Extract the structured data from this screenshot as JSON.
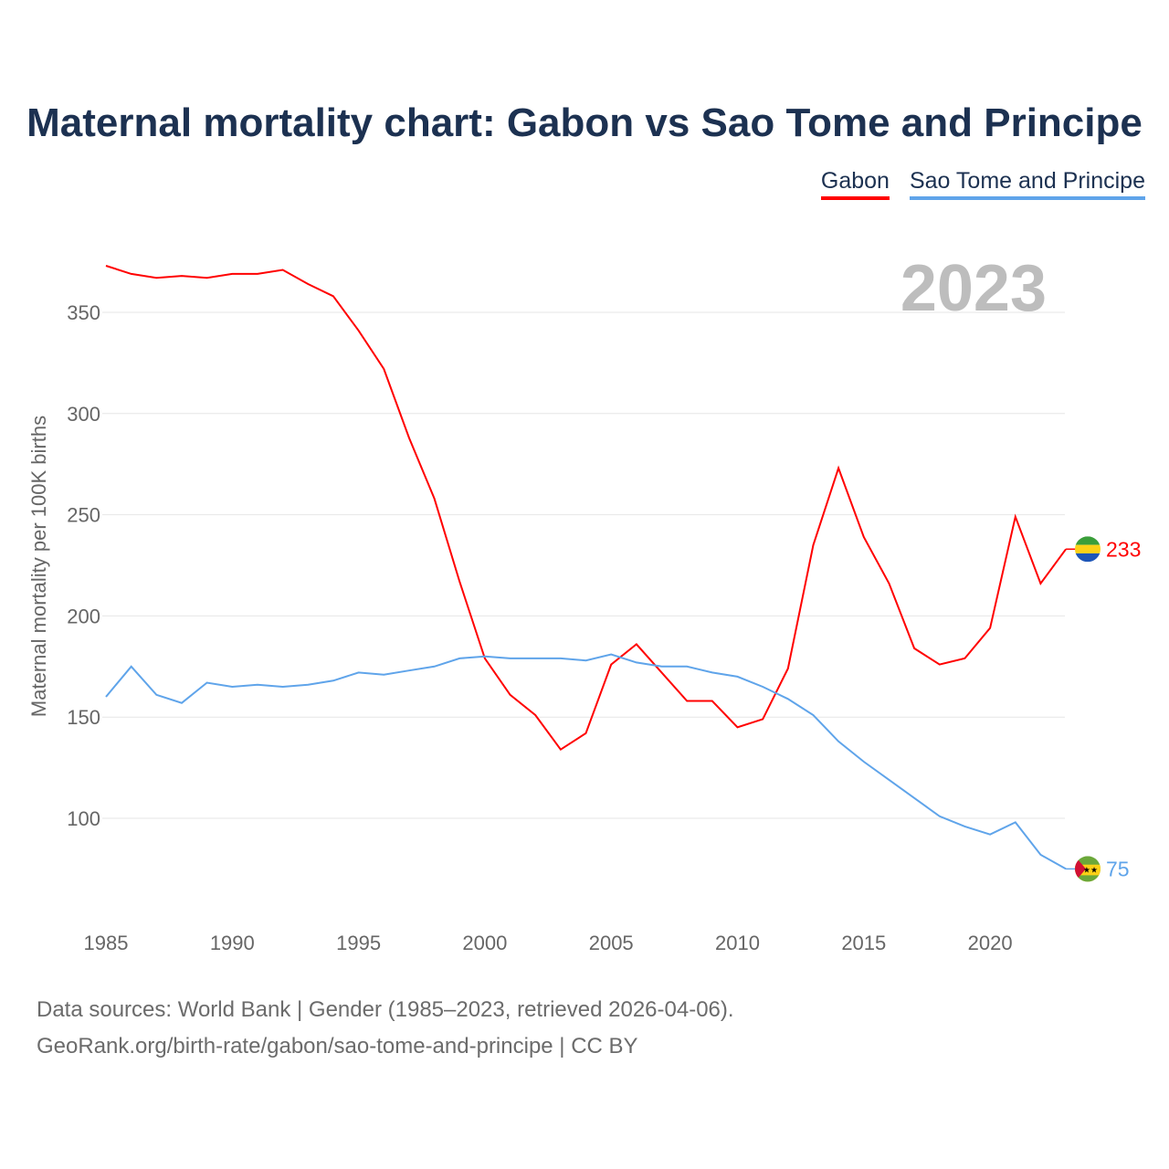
{
  "title": "Maternal mortality chart: Gabon vs Sao Tome and Principe",
  "footer": {
    "line1": "Data sources: World Bank | Gender (1985–2023, retrieved 2026-04-06).",
    "line2": "GeoRank.org/birth-rate/gabon/sao-tome-and-principe | CC BY"
  },
  "chart_data": {
    "type": "line",
    "title": "Maternal mortality chart: Gabon vs Sao Tome and Principe",
    "ylabel": "Maternal mortality per 100K births",
    "xlabel": "",
    "year_label": "2023",
    "xlim": [
      1985,
      2023
    ],
    "ylim": [
      50,
      380
    ],
    "yticks": [
      100,
      150,
      200,
      250,
      300,
      350
    ],
    "xticks": [
      1985,
      1990,
      1995,
      2000,
      2005,
      2010,
      2015,
      2020
    ],
    "legend_position": "top-right",
    "grid": true,
    "x": [
      1985,
      1986,
      1987,
      1988,
      1989,
      1990,
      1991,
      1992,
      1993,
      1994,
      1995,
      1996,
      1997,
      1998,
      1999,
      2000,
      2001,
      2002,
      2003,
      2004,
      2005,
      2006,
      2007,
      2008,
      2009,
      2010,
      2011,
      2012,
      2013,
      2014,
      2015,
      2016,
      2017,
      2018,
      2019,
      2020,
      2021,
      2022,
      2023
    ],
    "series": [
      {
        "name": "Gabon",
        "color": "#ff0000",
        "end_label": "233",
        "flag": "gabon-flag",
        "values": [
          373,
          369,
          367,
          368,
          367,
          369,
          369,
          371,
          364,
          358,
          341,
          322,
          288,
          258,
          217,
          179,
          161,
          151,
          134,
          142,
          176,
          186,
          172,
          158,
          158,
          145,
          149,
          174,
          235,
          273,
          239,
          216,
          184,
          176,
          179,
          194,
          249,
          216,
          233
        ]
      },
      {
        "name": "Sao Tome and Principe",
        "color": "#5fa4ea",
        "end_label": "75",
        "flag": "sao-tome-flag",
        "values": [
          160,
          175,
          161,
          157,
          167,
          165,
          166,
          165,
          166,
          168,
          172,
          171,
          173,
          175,
          179,
          180,
          179,
          179,
          179,
          178,
          181,
          177,
          175,
          175,
          172,
          170,
          165,
          159,
          151,
          138,
          128,
          119,
          110,
          101,
          96,
          92,
          98,
          82,
          75
        ]
      }
    ]
  }
}
